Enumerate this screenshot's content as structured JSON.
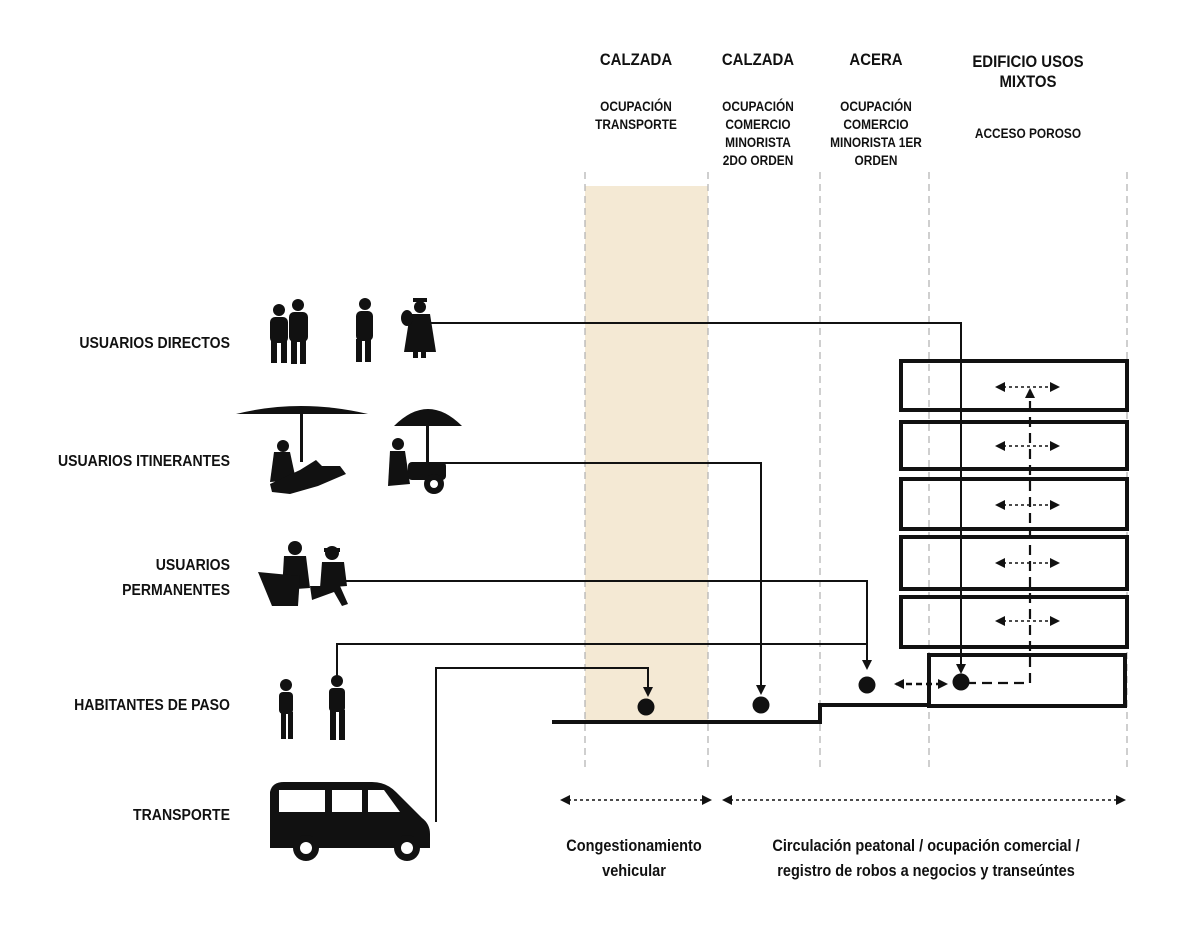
{
  "columns": [
    {
      "title": [
        "CALZADA"
      ],
      "subtitle": [
        "OCUPACIÓN",
        "TRANSPORTE"
      ]
    },
    {
      "title": [
        "CALZADA"
      ],
      "subtitle": [
        "OCUPACIÓN",
        "COMERCIO",
        "MINORISTA",
        "2DO ORDEN"
      ]
    },
    {
      "title": [
        "ACERA"
      ],
      "subtitle": [
        "OCUPACIÓN",
        "COMERCIO",
        "MINORISTA 1ER",
        "ORDEN"
      ]
    },
    {
      "title": [
        "EDIFICIO USOS",
        "MIXTOS"
      ],
      "subtitle": [
        "ACCESO POROSO"
      ]
    }
  ],
  "rows": [
    {
      "label": [
        "USUARIOS DIRECTOS"
      ]
    },
    {
      "label": [
        "USUARIOS ITINERANTES"
      ]
    },
    {
      "label": [
        "USUARIOS",
        "PERMANENTES"
      ]
    },
    {
      "label": [
        "HABITANTES DE PASO"
      ]
    },
    {
      "label": [
        "TRANSPORTE"
      ]
    }
  ],
  "captions": [
    {
      "text": [
        "Congestionamiento",
        "vehicular"
      ]
    },
    {
      "text": [
        "Circulación peatonal / ocupación comercial /",
        "registro de robos a negocios y transeúntes"
      ]
    }
  ],
  "colors": {
    "highlight": "#f4e9d4",
    "ink": "#111111",
    "guide": "#b5b5b5"
  }
}
